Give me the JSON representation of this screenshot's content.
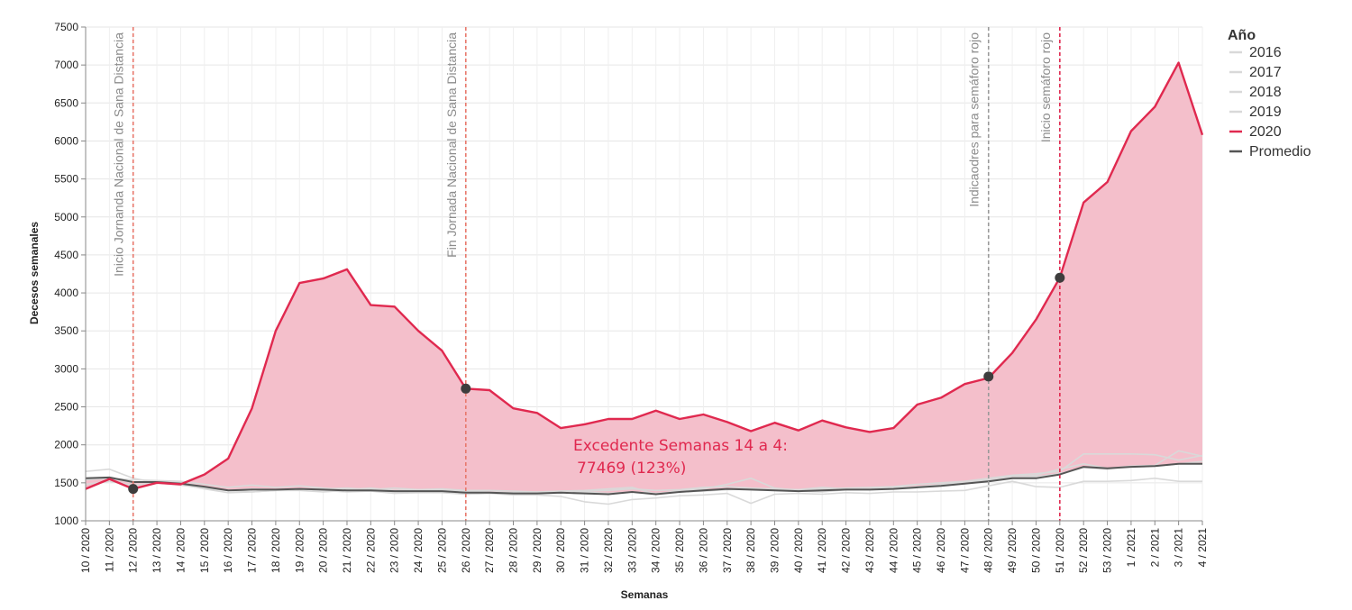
{
  "chart_data": {
    "type": "area",
    "xlabel": "Semanas",
    "ylabel": "Decesos semanales",
    "ylim": [
      1000,
      7500
    ],
    "yticks": [
      1000,
      1500,
      2000,
      2500,
      3000,
      3500,
      4000,
      4500,
      5000,
      5500,
      6000,
      6500,
      7000,
      7500
    ],
    "grid": true,
    "x": [
      "10 / 2020",
      "11 / 2020",
      "12 / 2020",
      "13 / 2020",
      "14 / 2020",
      "15 / 2020",
      "16 / 2020",
      "17 / 2020",
      "18 / 2020",
      "19 / 2020",
      "20 / 2020",
      "21 / 2020",
      "22 / 2020",
      "23 / 2020",
      "24 / 2020",
      "25 / 2020",
      "26 / 2020",
      "27 / 2020",
      "28 / 2020",
      "29 / 2020",
      "30 / 2020",
      "31 / 2020",
      "32 / 2020",
      "33 / 2020",
      "34 / 2020",
      "35 / 2020",
      "36 / 2020",
      "37 / 2020",
      "38 / 2020",
      "39 / 2020",
      "40 / 2020",
      "41 / 2020",
      "42 / 2020",
      "43 / 2020",
      "44 / 2020",
      "45 / 2020",
      "46 / 2020",
      "47 / 2020",
      "48 / 2020",
      "49 / 2020",
      "50 / 2020",
      "51 / 2020",
      "52 / 2020",
      "53 / 2020",
      "1 / 2021",
      "2 / 2021",
      "3 / 2021",
      "4 / 2021"
    ],
    "series": [
      {
        "name": "2016",
        "color": "#d9d9d9",
        "values": [
          1650,
          1680,
          1560,
          1500,
          1480,
          1420,
          1370,
          1380,
          1400,
          1400,
          1380,
          1400,
          1390,
          1380,
          1370,
          1370,
          1350,
          1360,
          1340,
          1340,
          1320,
          1250,
          1220,
          1280,
          1300,
          1330,
          1340,
          1360,
          1230,
          1350,
          1360,
          1350,
          1370,
          1360,
          1380,
          1380,
          1390,
          1400,
          1460,
          1520,
          1450,
          1440,
          1520,
          1520,
          1530,
          1560,
          1520,
          1520
        ]
      },
      {
        "name": "2017",
        "color": "#d9d9d9",
        "values": [
          1560,
          1560,
          1500,
          1520,
          1500,
          1450,
          1400,
          1380,
          1400,
          1420,
          1400,
          1380,
          1390,
          1360,
          1370,
          1380,
          1350,
          1360,
          1360,
          1350,
          1370,
          1380,
          1360,
          1380,
          1360,
          1380,
          1390,
          1410,
          1420,
          1400,
          1390,
          1380,
          1410,
          1420,
          1440,
          1450,
          1480,
          1520,
          1540,
          1580,
          1600,
          1680,
          1750,
          1690,
          1720,
          1720,
          1750,
          1780
        ]
      },
      {
        "name": "2018",
        "color": "#d9d9d9",
        "values": [
          1540,
          1560,
          1540,
          1530,
          1520,
          1480,
          1440,
          1470,
          1440,
          1460,
          1430,
          1410,
          1430,
          1400,
          1410,
          1400,
          1390,
          1380,
          1370,
          1380,
          1390,
          1400,
          1420,
          1440,
          1350,
          1400,
          1420,
          1480,
          1560,
          1430,
          1400,
          1420,
          1430,
          1440,
          1450,
          1480,
          1500,
          1520,
          1560,
          1600,
          1620,
          1650,
          1880,
          1880,
          1880,
          1870,
          1800,
          1860
        ]
      },
      {
        "name": "2019",
        "color": "#d9d9d9",
        "values": [
          1480,
          1520,
          1470,
          1500,
          1470,
          1430,
          1400,
          1420,
          1410,
          1420,
          1420,
          1430,
          1410,
          1430,
          1410,
          1420,
          1400,
          1400,
          1390,
          1380,
          1390,
          1390,
          1400,
          1420,
          1400,
          1410,
          1440,
          1450,
          1430,
          1420,
          1410,
          1440,
          1420,
          1410,
          1420,
          1450,
          1470,
          1500,
          1530,
          1560,
          1580,
          1620,
          1700,
          1680,
          1720,
          1730,
          1920,
          1850
        ]
      },
      {
        "name": "2020",
        "color": "#e0294f",
        "values": [
          1420,
          1550,
          1420,
          1500,
          1480,
          1610,
          1820,
          2480,
          3500,
          4130,
          4190,
          4310,
          3840,
          3820,
          3500,
          3240,
          2740,
          2720,
          2480,
          2420,
          2220,
          2270,
          2340,
          2340,
          2450,
          2340,
          2400,
          2300,
          2180,
          2290,
          2190,
          2320,
          2230,
          2170,
          2220,
          2530,
          2620,
          2800,
          2880,
          3210,
          3650,
          4200,
          5190,
          5460,
          6130,
          6450,
          7030,
          6080
        ]
      },
      {
        "name": "Promedio",
        "color": "#555555",
        "values": [
          1560,
          1570,
          1510,
          1510,
          1490,
          1450,
          1400,
          1410,
          1410,
          1420,
          1410,
          1400,
          1400,
          1390,
          1390,
          1390,
          1370,
          1370,
          1360,
          1360,
          1370,
          1360,
          1350,
          1380,
          1350,
          1380,
          1400,
          1420,
          1410,
          1400,
          1390,
          1400,
          1410,
          1410,
          1420,
          1440,
          1460,
          1490,
          1520,
          1560,
          1560,
          1610,
          1710,
          1690,
          1710,
          1720,
          1750,
          1750
        ]
      }
    ],
    "vlines": [
      {
        "x": "12 / 2020",
        "label": "Inicio Jornanda Nacional de Sana Distancia",
        "color": "#e8786c"
      },
      {
        "x": "26 / 2020",
        "label": "Fin Jornada Nacional de Sana Distancia",
        "color": "#e8786c"
      },
      {
        "x": "48 / 2020",
        "label": "Indicaodres para semáforo rojo",
        "color": "#9a9a9a"
      },
      {
        "x": "51 / 2020",
        "label": "Inicio semáforo rojo",
        "color": "#e0294f"
      }
    ],
    "markers": [
      {
        "x": "12 / 2020",
        "y": 1420
      },
      {
        "x": "26 / 2020",
        "y": 2740
      },
      {
        "x": "48 / 2020",
        "y": 2900
      },
      {
        "x": "51 / 2020",
        "y": 4200
      }
    ],
    "annotation": [
      "Excedente Semanas 14 a 4:",
      "77469 (123%)"
    ],
    "fill_color": "#f4bfcb",
    "legend": {
      "title": "Año",
      "position": "top-right",
      "items": [
        {
          "label": "2016",
          "color": "#d9d9d9"
        },
        {
          "label": "2017",
          "color": "#d9d9d9"
        },
        {
          "label": "2018",
          "color": "#d9d9d9"
        },
        {
          "label": "2019",
          "color": "#d9d9d9"
        },
        {
          "label": "2020",
          "color": "#e0294f"
        },
        {
          "label": "Promedio",
          "color": "#555555"
        }
      ]
    }
  }
}
